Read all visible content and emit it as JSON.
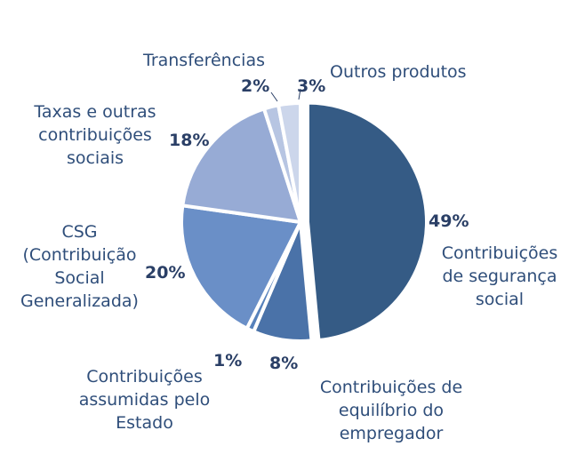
{
  "chart_data": {
    "type": "pie",
    "slices": [
      {
        "label": "Contribuições\nde segurança\nsocial",
        "percent_label": "49%",
        "value": 49,
        "color": "#355b85"
      },
      {
        "label": "Contribuições de\nequilíbrio do\nempregador",
        "percent_label": "8%",
        "value": 8,
        "color": "#4a72a8"
      },
      {
        "label": "Contribuições\nassumidas pelo\nEstado",
        "percent_label": "1%",
        "value": 1,
        "color": "#5681bb"
      },
      {
        "label": "CSG\n(Contribuição\nSocial\nGeneralizada)",
        "percent_label": "20%",
        "value": 20,
        "color": "#6a8fc7"
      },
      {
        "label": "Taxas e outras\ncontribuições\nsociais",
        "percent_label": "18%",
        "value": 18,
        "color": "#97abd5"
      },
      {
        "label": "Transferências",
        "percent_label": "2%",
        "value": 2,
        "color": "#b7c5e2"
      },
      {
        "label": "Outros produtos",
        "percent_label": "3%",
        "value": 3,
        "color": "#ccd6eb"
      }
    ]
  }
}
